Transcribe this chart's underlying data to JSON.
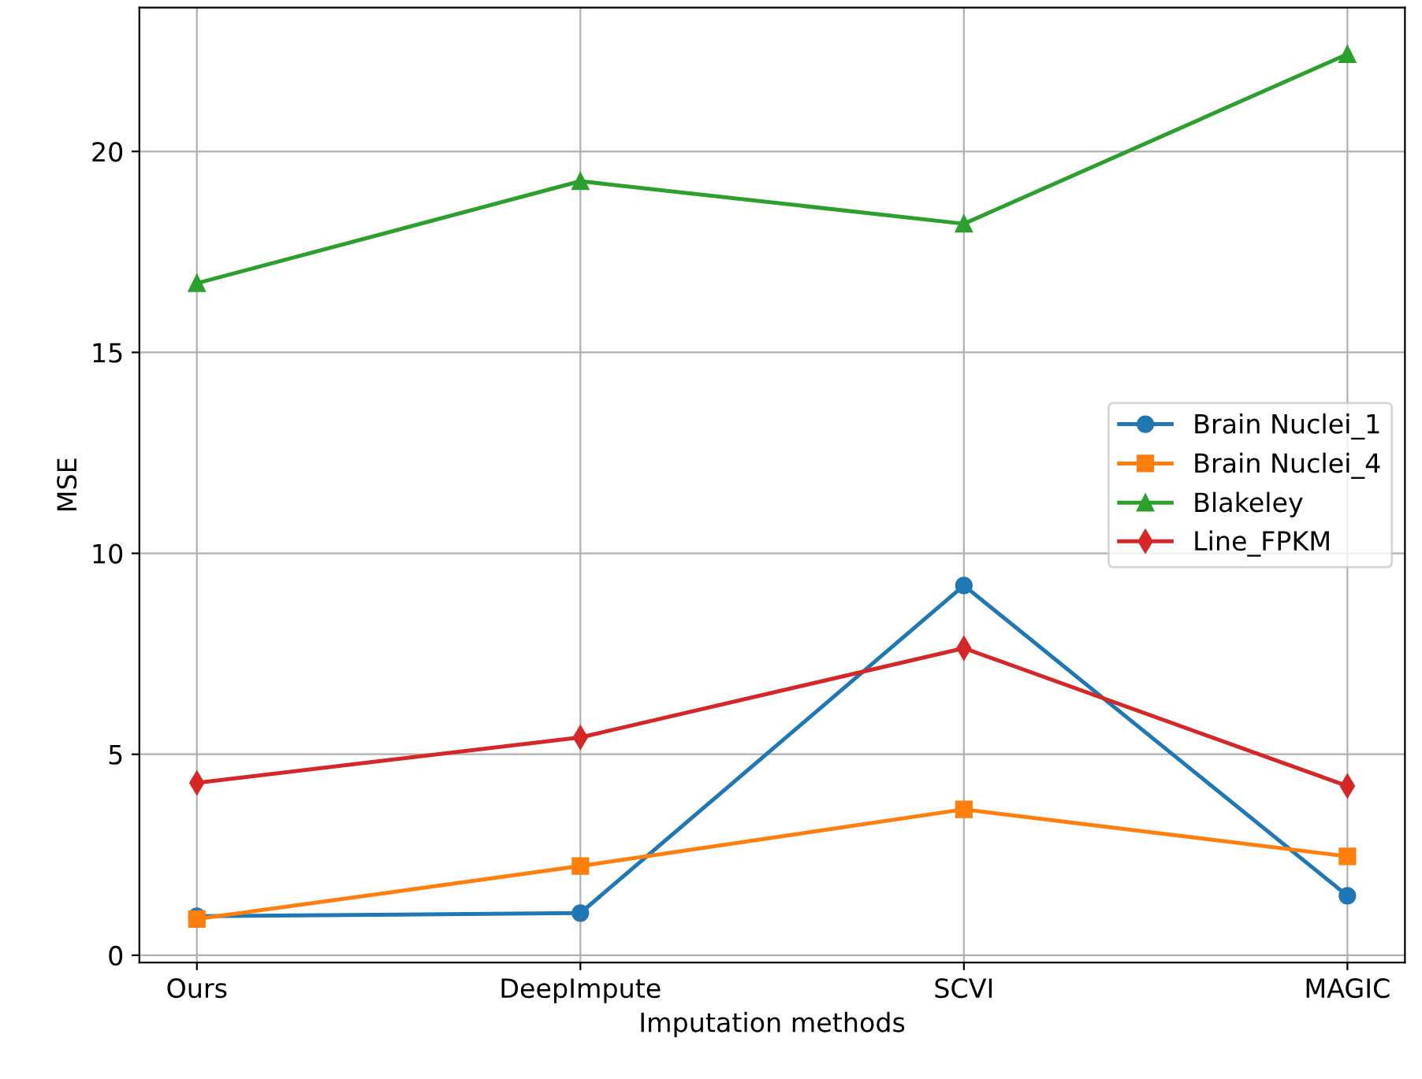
{
  "chart_data": {
    "type": "line",
    "xlabel": "Imputation methods",
    "ylabel": "MSE",
    "categories": [
      "Ours",
      "DeepImpute",
      "SCVI",
      "MAGIC"
    ],
    "series": [
      {
        "name": "Brain Nuclei_1",
        "color": "#1f77b4",
        "marker": "circle",
        "values": [
          0.97,
          1.05,
          9.2,
          1.48
        ]
      },
      {
        "name": "Brain Nuclei_4",
        "color": "#ff7f0e",
        "marker": "square",
        "values": [
          0.9,
          2.22,
          3.63,
          2.46
        ]
      },
      {
        "name": "Blakeley",
        "color": "#2ca02c",
        "marker": "triangle",
        "values": [
          16.72,
          19.26,
          18.2,
          22.42
        ]
      },
      {
        "name": "Line_FPKM",
        "color": "#d62728",
        "marker": "diamond",
        "values": [
          4.29,
          5.42,
          7.64,
          4.21
        ]
      }
    ],
    "ylim": [
      -0.18,
      23.58
    ],
    "yticks": [
      0,
      5,
      10,
      15,
      20
    ],
    "grid": true,
    "legend": "center right",
    "line_style": "solid"
  }
}
